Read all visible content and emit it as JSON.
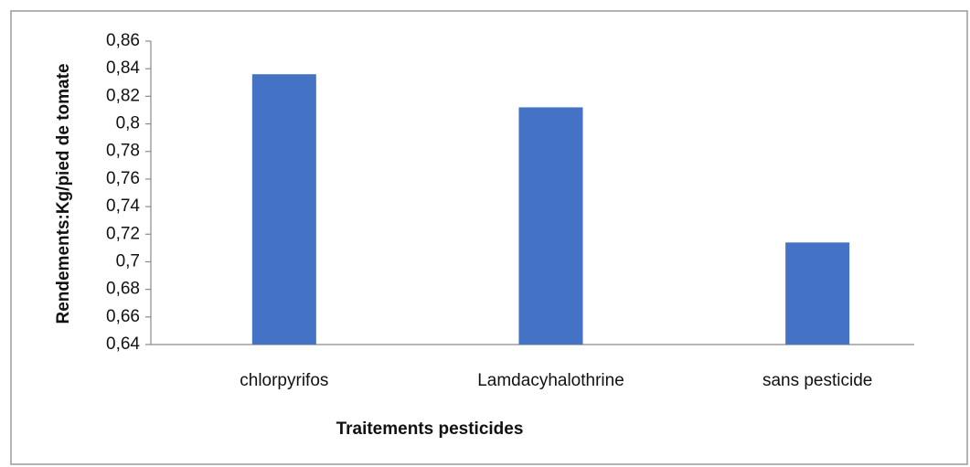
{
  "chart_data": {
    "type": "bar",
    "x_label": "Traitements pesticides",
    "y_label": "Rendements:Kg/pied de tomate",
    "categories": [
      "chlorpyrifos",
      "Lamdacyhalothrine",
      "sans pesticide"
    ],
    "values": [
      0.836,
      0.812,
      0.714
    ],
    "color": "#4472c4",
    "ylim": [
      0.64,
      0.86
    ],
    "yticks": [
      {
        "value": 0.64,
        "label": "0,64"
      },
      {
        "value": 0.66,
        "label": "0,66"
      },
      {
        "value": 0.68,
        "label": "0,68"
      },
      {
        "value": 0.7,
        "label": "0,7"
      },
      {
        "value": 0.72,
        "label": "0,72"
      },
      {
        "value": 0.74,
        "label": "0,74"
      },
      {
        "value": 0.76,
        "label": "0,76"
      },
      {
        "value": 0.78,
        "label": "0,78"
      },
      {
        "value": 0.8,
        "label": "0,8"
      },
      {
        "value": 0.82,
        "label": "0,82"
      },
      {
        "value": 0.84,
        "label": "0,84"
      },
      {
        "value": 0.86,
        "label": "0,86"
      }
    ],
    "grid": false
  }
}
